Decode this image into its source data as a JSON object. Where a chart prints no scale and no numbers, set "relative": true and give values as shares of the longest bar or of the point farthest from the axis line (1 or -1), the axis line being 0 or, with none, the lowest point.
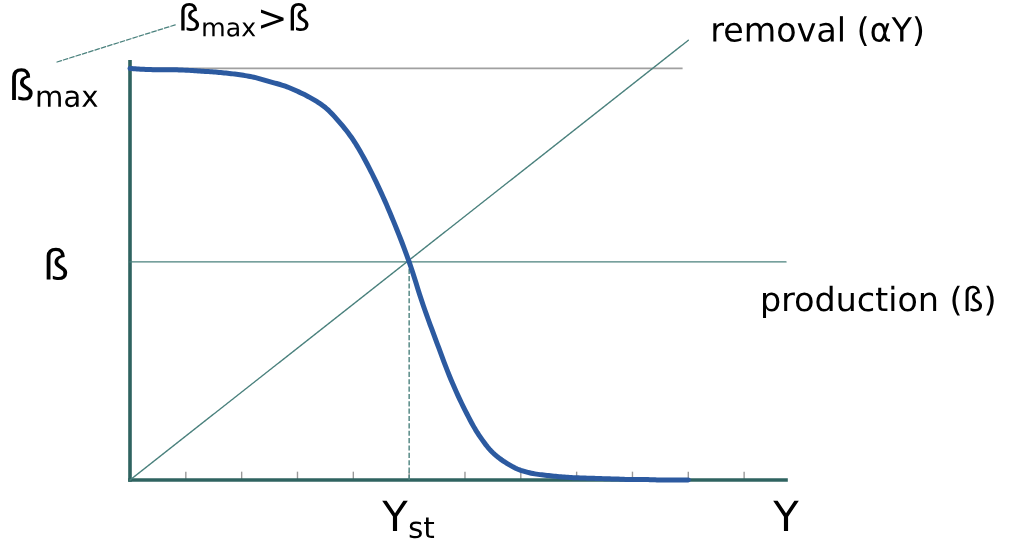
{
  "chart_data": {
    "type": "line",
    "relative": true,
    "categories": [
      null,
      null,
      null,
      null,
      null,
      null,
      null,
      null,
      null,
      null,
      null,
      null,
      null,
      null,
      null,
      null,
      null,
      null,
      null,
      null,
      "Y$_{st}$",
      null,
      null,
      null,
      null,
      null,
      null,
      null,
      null,
      null,
      null,
      null,
      null,
      null,
      null,
      null,
      null,
      null,
      null,
      null,
      null,
      null,
      null,
      null,
      null,
      null,
      null,
      "Y"
    ],
    "series": [
      {
        "color": "#2c5aa0",
        "values": [
          0.936,
          0.934,
          0.933,
          0.933,
          0.932,
          0.93,
          0.928,
          0.925,
          0.921,
          0.915,
          0.906,
          0.897,
          0.884,
          0.868,
          0.847,
          0.814,
          0.773,
          0.718,
          0.653,
          0.579,
          0.496,
          0.398,
          0.311,
          0.228,
          0.159,
          0.102,
          0.062,
          0.038,
          0.022,
          0.014,
          0.01,
          0.007,
          0.005,
          0.004,
          0.003,
          0.002,
          0.001,
          0.001,
          0,
          0,
          0,
          null,
          null,
          null,
          null,
          null,
          null,
          null
        ]
      },
      {
        "name": "removal (αY)",
        "color": "#4a817d",
        "values": [
          0,
          0.025,
          0.05,
          0.075,
          0.1,
          0.125,
          0.15,
          0.175,
          0.2,
          0.225,
          0.25,
          0.275,
          0.3,
          0.325,
          0.35,
          0.375,
          0.4,
          0.425,
          0.45,
          0.475,
          0.5,
          0.525,
          0.55,
          0.575,
          0.6,
          0.625,
          0.65,
          0.675,
          0.7,
          0.725,
          0.75,
          0.775,
          0.8,
          0.825,
          0.85,
          0.875,
          0.9,
          0.925,
          0.95,
          0.975,
          1,
          null,
          null,
          null,
          null,
          null,
          null,
          null
        ]
      },
      {
        "name": "production (ß)",
        "color": "#4a817d",
        "values": [
          0.496,
          0.496,
          0.496,
          0.496,
          0.496,
          0.496,
          0.496,
          0.496,
          0.496,
          0.496,
          0.496,
          0.496,
          0.496,
          0.496,
          0.496,
          0.496,
          0.496,
          0.496,
          0.496,
          0.496,
          0.496,
          0.496,
          0.496,
          0.496,
          0.496,
          0.496,
          0.496,
          0.496,
          0.496,
          0.496,
          0.496,
          0.496,
          0.496,
          0.496,
          0.496,
          0.496,
          0.496,
          0.496,
          0.496,
          0.496,
          0.496,
          0.496,
          0.496,
          0.496,
          0.496,
          0.496,
          0.496,
          0.496
        ]
      },
      {
        "type": "line",
        "x": [
          "Y$_{st}$",
          "Y$_{st}$"
        ],
        "values": [
          0,
          0.496
        ],
        "color": "#4a817d",
        "line_style": "dashed"
      }
    ],
    "ref_lines": [
      {
        "axis": "y",
        "value": 0.936,
        "label": "ß$_{max}$",
        "color": "#a0a0a0"
      }
    ],
    "annotations": [
      "ß$_{max}$>ß",
      "ß"
    ]
  }
}
